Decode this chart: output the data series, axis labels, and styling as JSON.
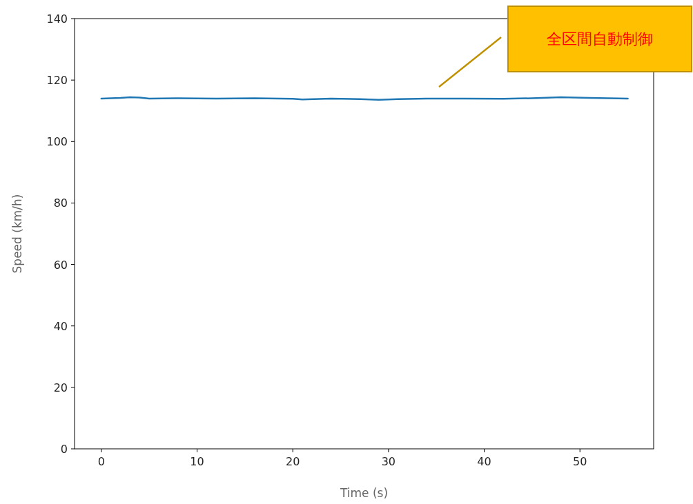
{
  "chart_data": {
    "type": "line",
    "xlabel": "Time (s)",
    "ylabel": "Speed (km/h)",
    "x": [
      0,
      2,
      3,
      4,
      5,
      8,
      12,
      16,
      20,
      21,
      24,
      27,
      29,
      31,
      34,
      38,
      42,
      45,
      48,
      51,
      53,
      55
    ],
    "series": [
      {
        "color": "#1f77b4",
        "values": [
          114.0,
          114.2,
          114.4,
          114.3,
          114.0,
          114.1,
          114.0,
          114.1,
          113.9,
          113.7,
          114.0,
          113.8,
          113.6,
          113.8,
          114.0,
          114.0,
          113.9,
          114.1,
          114.4,
          114.2,
          114.1,
          114.0
        ]
      }
    ],
    "xlim": [
      -2.8,
      57.7
    ],
    "ylim": [
      0,
      140
    ],
    "xticks": [
      0,
      10,
      20,
      30,
      40,
      50
    ],
    "yticks": [
      0,
      20,
      40,
      60,
      80,
      100,
      120,
      140
    ],
    "annotations": [
      "全区間自動制御"
    ]
  }
}
